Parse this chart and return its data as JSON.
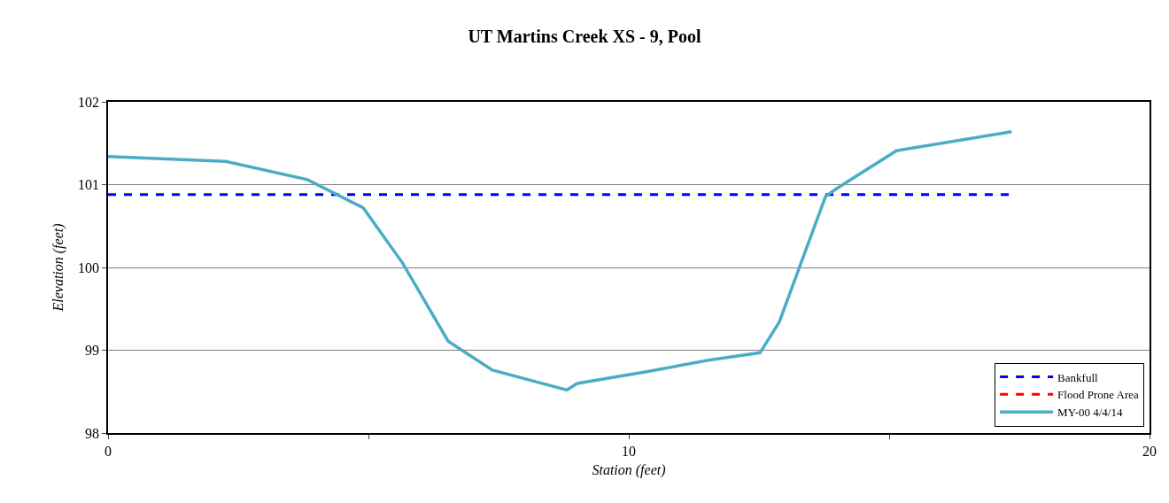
{
  "chart_data": {
    "type": "line",
    "title": "UT Martins Creek XS - 9, Pool",
    "xlabel": "Station (feet)",
    "ylabel": "Elevation (feet)",
    "xlim": [
      0,
      20
    ],
    "xticks": [
      0,
      {
        "value": 5,
        "label": null
      },
      10,
      {
        "value": 15,
        "label": null
      },
      20
    ],
    "ylim": [
      98,
      102
    ],
    "yticks": [
      98,
      99,
      100,
      101,
      102
    ],
    "grid": "y",
    "legend": "bottom right",
    "line_style": "solid",
    "marker": "none",
    "series": [
      {
        "name": "Bankfull",
        "color": "#0000ff",
        "line_style": "dashed",
        "x": [
          0,
          17.35
        ],
        "values": [
          100.88,
          100.88
        ]
      },
      {
        "name": "Flood Prone Area",
        "color": "#ff0000",
        "line_style": "dashed",
        "values": [
          null
        ]
      },
      {
        "name": "MY-00 4/4/14",
        "color": "#4bacc6",
        "x": [
          0,
          2.26,
          3.83,
          4.9,
          5.66,
          6.53,
          7.38,
          8.81,
          9.01,
          10.34,
          11.53,
          12.52,
          12.89,
          13.78,
          14.01,
          15.14,
          17.35
        ],
        "values": [
          101.34,
          101.28,
          101.06,
          100.72,
          100.05,
          99.11,
          98.76,
          98.52,
          98.6,
          98.74,
          98.88,
          98.97,
          99.34,
          100.86,
          100.96,
          101.41,
          101.64
        ]
      }
    ]
  }
}
